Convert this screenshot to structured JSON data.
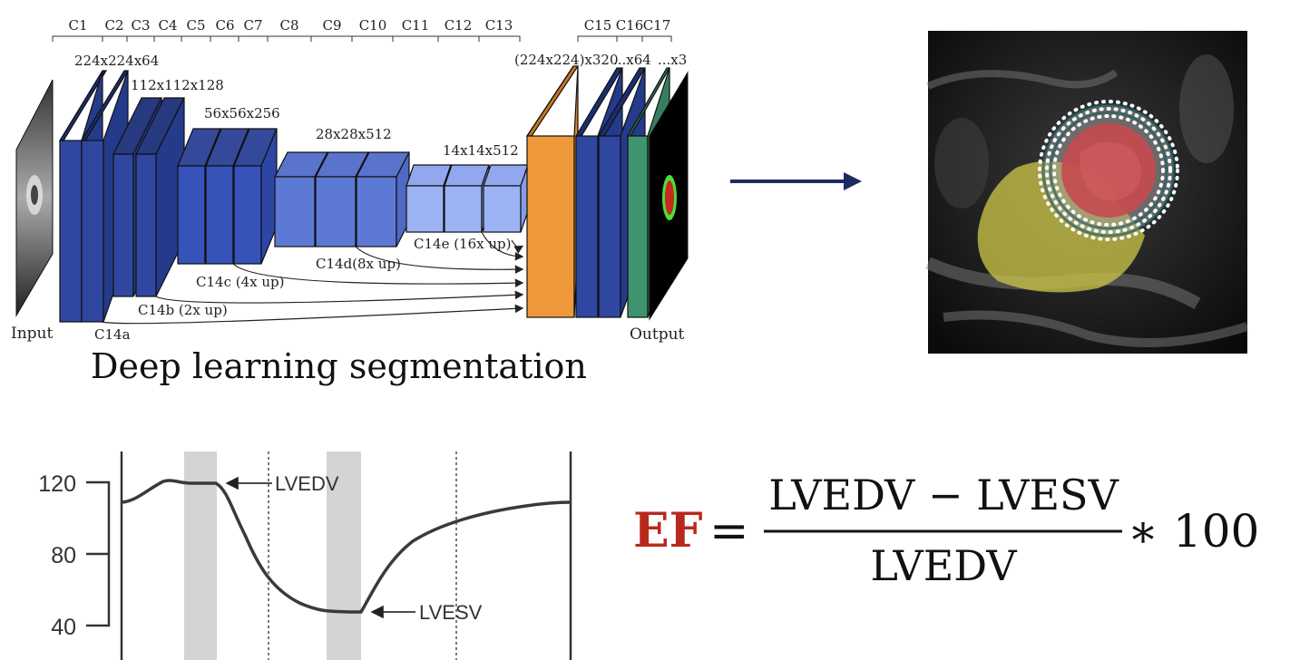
{
  "network": {
    "caption": "Deep learning segmentation",
    "input_label": "Input",
    "output_label": "Output",
    "conv_labels": [
      "C1",
      "C2",
      "C3",
      "C4",
      "C5",
      "C6",
      "C7",
      "C8",
      "C9",
      "C10",
      "C11",
      "C12",
      "C13",
      "C15",
      "C16",
      "C17"
    ],
    "dims": {
      "d1": "224x224x64",
      "d2": "112x112x128",
      "d3": "56x56x256",
      "d4": "28x28x512",
      "d5": "14x14x512",
      "d6": "(224x224)x320",
      "d7": "...x64",
      "d8": "...x3"
    },
    "skip_labels": {
      "a": "C14a",
      "b": "C14b (2x up)",
      "c": "C14c (4x up)",
      "d": "C14d(8x up)",
      "e": "C14e (16x up)"
    },
    "colors": {
      "dark_blue": "#2f47a0",
      "mid_blue": "#4a6bd0",
      "light_blue": "#8fa8f0",
      "orange": "#f0993a",
      "green": "#3e9470"
    }
  },
  "volume_plot": {
    "y_ticks": [
      "120",
      "80",
      "40"
    ],
    "label_edv": "LVEDV",
    "label_esv": "LVESV"
  },
  "formula": {
    "ef": "EF",
    "equals": "=",
    "numerator": "LVEDV − LVESV",
    "denominator": "LVEDV",
    "times": "∗ 100",
    "ef_color": "#b8291c"
  }
}
